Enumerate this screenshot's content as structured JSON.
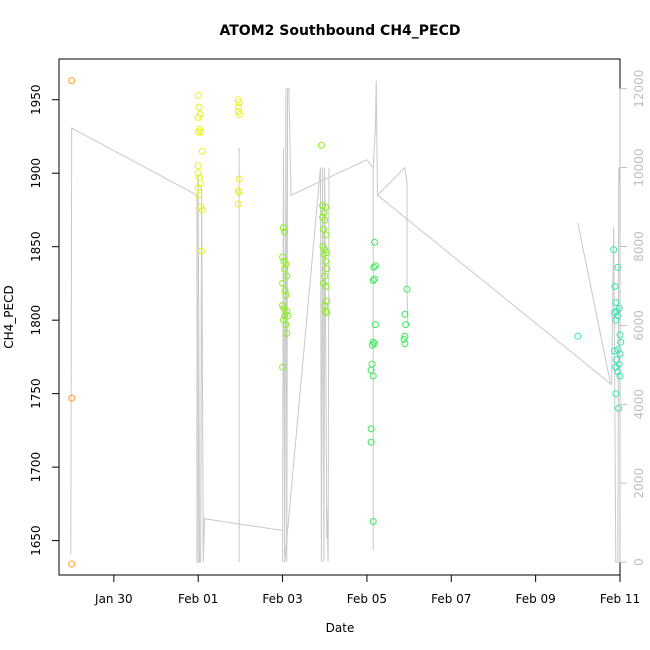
{
  "chart_data": {
    "type": "scatter",
    "title": "ATOM2 Southbound CH4_PECD",
    "xlabel": "Date",
    "ylabel": "CH4_PECD",
    "ylabel_right": "",
    "grid": false,
    "xlim_days": [
      -1.3,
      12.0
    ],
    "ylim": [
      1630,
      1975
    ],
    "y2lim": [
      -200,
      12650
    ],
    "x_ticks": [
      {
        "day": 0,
        "label": "Jan 30"
      },
      {
        "day": 2,
        "label": "Feb 01"
      },
      {
        "day": 4,
        "label": "Feb 03"
      },
      {
        "day": 6,
        "label": "Feb 05"
      },
      {
        "day": 8,
        "label": "Feb 07"
      },
      {
        "day": 10,
        "label": "Feb 09"
      },
      {
        "day": 12,
        "label": "Feb 11"
      }
    ],
    "y_ticks": [
      1650,
      1700,
      1750,
      1800,
      1850,
      1900,
      1950
    ],
    "y2_ticks": [
      0,
      2000,
      4000,
      6000,
      8000,
      10000,
      12000
    ],
    "series": [
      {
        "color": "#FF9F2E",
        "points": [
          [
            -1.0,
            1963
          ],
          [
            -1.0,
            1747
          ],
          [
            -1.0,
            1634
          ]
        ]
      },
      {
        "color": "#E8F21E",
        "points": [
          [
            2.0,
            1953
          ],
          [
            2.02,
            1945
          ],
          [
            2.05,
            1940
          ],
          [
            2.0,
            1938
          ],
          [
            2.03,
            1930
          ],
          [
            2.0,
            1928
          ],
          [
            2.06,
            1928
          ],
          [
            2.1,
            1915
          ],
          [
            2.0,
            1905
          ],
          [
            2.0,
            1900
          ],
          [
            2.03,
            1897
          ],
          [
            2.05,
            1893
          ],
          [
            2.0,
            1890
          ],
          [
            2.02,
            1885
          ],
          [
            2.06,
            1877
          ],
          [
            2.1,
            1875
          ],
          [
            2.08,
            1847
          ],
          [
            2.95,
            1950
          ],
          [
            2.97,
            1948
          ],
          [
            2.96,
            1945
          ],
          [
            2.95,
            1942
          ],
          [
            2.98,
            1940
          ],
          [
            2.97,
            1896
          ],
          [
            2.95,
            1888
          ],
          [
            2.97,
            1887
          ],
          [
            2.95,
            1879
          ]
        ]
      },
      {
        "color": "#8AF01E",
        "points": [
          [
            4.02,
            1863
          ],
          [
            4.05,
            1860
          ],
          [
            4.0,
            1843
          ],
          [
            4.03,
            1840
          ],
          [
            4.08,
            1838
          ],
          [
            4.05,
            1835
          ],
          [
            4.1,
            1830
          ],
          [
            4.0,
            1825
          ],
          [
            4.06,
            1820
          ],
          [
            4.08,
            1817
          ],
          [
            4.0,
            1810
          ],
          [
            4.03,
            1808
          ],
          [
            4.1,
            1806
          ],
          [
            4.05,
            1803
          ],
          [
            4.12,
            1803
          ],
          [
            4.02,
            1800
          ],
          [
            4.08,
            1797
          ],
          [
            4.1,
            1791
          ],
          [
            4.0,
            1768
          ],
          [
            4.92,
            1919
          ],
          [
            4.95,
            1878
          ],
          [
            5.02,
            1877
          ],
          [
            4.98,
            1873
          ],
          [
            4.95,
            1870
          ],
          [
            5.0,
            1868
          ],
          [
            4.97,
            1862
          ],
          [
            5.03,
            1858
          ],
          [
            4.96,
            1850
          ],
          [
            5.0,
            1848
          ],
          [
            5.05,
            1846
          ],
          [
            4.98,
            1845
          ],
          [
            5.02,
            1840
          ],
          [
            5.05,
            1835
          ],
          [
            5.0,
            1830
          ],
          [
            4.97,
            1825
          ],
          [
            5.03,
            1823
          ],
          [
            5.05,
            1813
          ],
          [
            5.0,
            1810
          ],
          [
            5.02,
            1806
          ],
          [
            5.05,
            1805
          ]
        ]
      },
      {
        "color": "#38EB5A",
        "points": [
          [
            6.18,
            1853
          ],
          [
            6.2,
            1837
          ],
          [
            6.16,
            1836
          ],
          [
            6.18,
            1828
          ],
          [
            6.15,
            1827
          ],
          [
            6.2,
            1797
          ],
          [
            6.15,
            1785
          ],
          [
            6.18,
            1784
          ],
          [
            6.13,
            1783
          ],
          [
            6.12,
            1770
          ],
          [
            6.1,
            1766
          ],
          [
            6.15,
            1762
          ],
          [
            6.1,
            1726
          ],
          [
            6.1,
            1717
          ],
          [
            6.15,
            1663
          ],
          [
            6.95,
            1821
          ],
          [
            6.9,
            1804
          ],
          [
            6.92,
            1797
          ],
          [
            6.9,
            1789
          ],
          [
            6.88,
            1787
          ],
          [
            6.9,
            1784
          ]
        ]
      },
      {
        "color": "#2BEBB0",
        "points": [
          [
            11.0,
            1789
          ],
          [
            11.85,
            1848
          ],
          [
            11.95,
            1836
          ],
          [
            11.88,
            1823
          ],
          [
            11.9,
            1812
          ],
          [
            11.98,
            1808
          ],
          [
            11.92,
            1806
          ],
          [
            11.87,
            1805
          ],
          [
            11.95,
            1803
          ],
          [
            11.9,
            1800
          ],
          [
            12.0,
            1790
          ],
          [
            12.02,
            1785
          ],
          [
            11.95,
            1780
          ],
          [
            11.87,
            1779
          ],
          [
            12.0,
            1777
          ],
          [
            11.92,
            1773
          ],
          [
            11.98,
            1770
          ],
          [
            11.9,
            1768
          ],
          [
            11.95,
            1765
          ],
          [
            12.0,
            1762
          ],
          [
            11.9,
            1750
          ],
          [
            11.97,
            1740
          ]
        ]
      }
    ],
    "trace": {
      "color": "#C8C8C8",
      "axis": "right",
      "segments": [
        [
          [
            -1.02,
            200
          ],
          [
            -1.0,
            11000
          ],
          [
            1.97,
            9300
          ],
          [
            1.97,
            0
          ],
          [
            2.0,
            0
          ],
          [
            2.0,
            9800
          ],
          [
            2.03,
            0
          ],
          [
            2.06,
            0
          ],
          [
            2.08,
            9500
          ],
          [
            2.12,
            0
          ],
          [
            2.15,
            1100
          ],
          [
            4.0,
            800
          ],
          [
            4.0,
            0
          ],
          [
            4.02,
            10500
          ],
          [
            4.05,
            0
          ],
          [
            4.08,
            12000
          ],
          [
            4.1,
            0
          ],
          [
            4.12,
            12000
          ],
          [
            4.15,
            12000
          ],
          [
            4.2,
            9300
          ],
          [
            6.0,
            10200
          ],
          [
            6.15,
            10000
          ]
        ],
        [
          [
            2.97,
            0
          ],
          [
            2.97,
            10500
          ]
        ],
        [
          [
            4.05,
            0
          ],
          [
            4.9,
            10000
          ],
          [
            4.92,
            0
          ],
          [
            4.95,
            10000
          ],
          [
            4.98,
            0
          ],
          [
            5.0,
            10000
          ],
          [
            5.05,
            600
          ],
          [
            5.05,
            1400
          ],
          [
            5.08,
            0
          ],
          [
            5.1,
            10000
          ]
        ],
        [
          [
            6.15,
            300
          ],
          [
            6.15,
            10000
          ],
          [
            6.2,
            11000
          ],
          [
            6.22,
            12200
          ],
          [
            6.25,
            9300
          ],
          [
            6.9,
            10000
          ],
          [
            6.95,
            9600
          ],
          [
            6.95,
            6900
          ],
          [
            6.97,
            6000
          ]
        ],
        [
          [
            6.25,
            9300
          ],
          [
            11.8,
            4500
          ],
          [
            11.85,
            8500
          ],
          [
            11.9,
            0
          ],
          [
            11.95,
            0
          ],
          [
            11.97,
            10000
          ],
          [
            12.0,
            9600
          ],
          [
            12.0,
            0
          ]
        ],
        [
          [
            11.0,
            8600
          ],
          [
            11.78,
            4500
          ]
        ]
      ]
    }
  }
}
